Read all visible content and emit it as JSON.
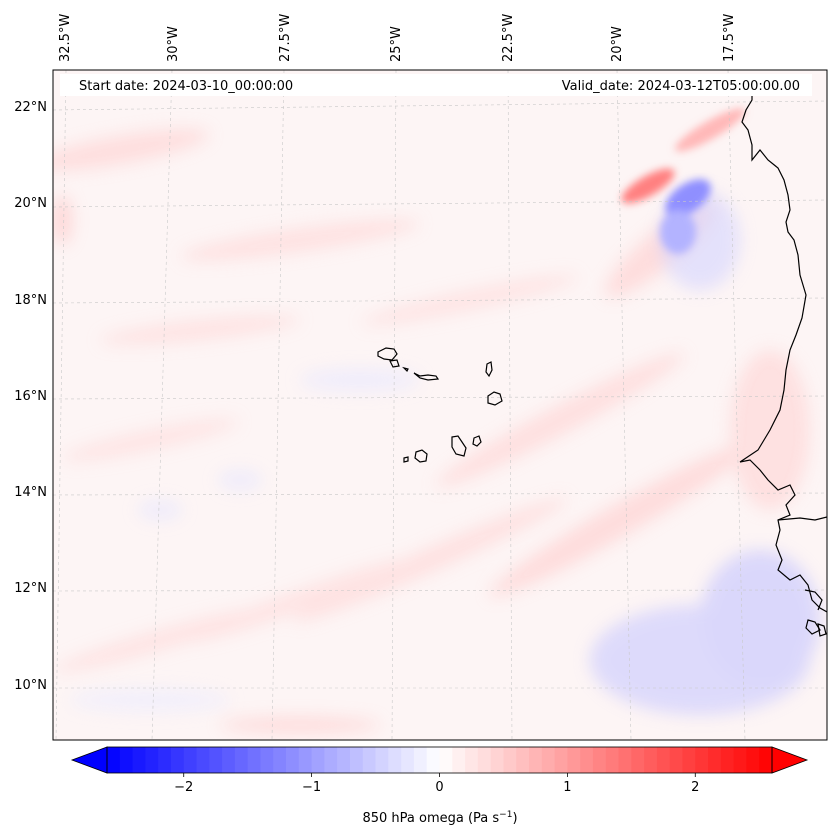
{
  "map": {
    "start_label": "Start date: 2024-03-10_00:00:00",
    "valid_label": "Valid_date: 2024-03-12T05:00:00.00",
    "lon_labels": [
      "32.5°W",
      "30°W",
      "27.5°W",
      "25°W",
      "22.5°W",
      "20°W",
      "17.5°W"
    ],
    "lat_labels": [
      "22°N",
      "20°N",
      "18°N",
      "16°N",
      "14°N",
      "12°N",
      "10°N"
    ],
    "extent": {
      "lon_min": -33.0,
      "lon_max": -15.5,
      "lat_min": 8.8,
      "lat_max": 22.7
    },
    "islands": [
      "Santo Antão",
      "São Vicente",
      "São Nicolau",
      "Sal",
      "Boa Vista",
      "Maio",
      "Santiago",
      "Fogo",
      "Brava"
    ]
  },
  "colorbar": {
    "title": "850 hPa omega (Pa s",
    "title_sup": "−1",
    "title_close": ")",
    "ticks": [
      "−2",
      "−1",
      "0",
      "1",
      "2"
    ],
    "tick_values": [
      -2,
      -1,
      0,
      1,
      2
    ],
    "range": [
      -2.6,
      2.6
    ],
    "colormap": "bwr",
    "extend": "both"
  },
  "colors": {
    "negative": "#0000ff",
    "neutral": "#ffffff",
    "positive": "#ff0000",
    "coast": "#000000",
    "grid": "#c8c8c8"
  }
}
